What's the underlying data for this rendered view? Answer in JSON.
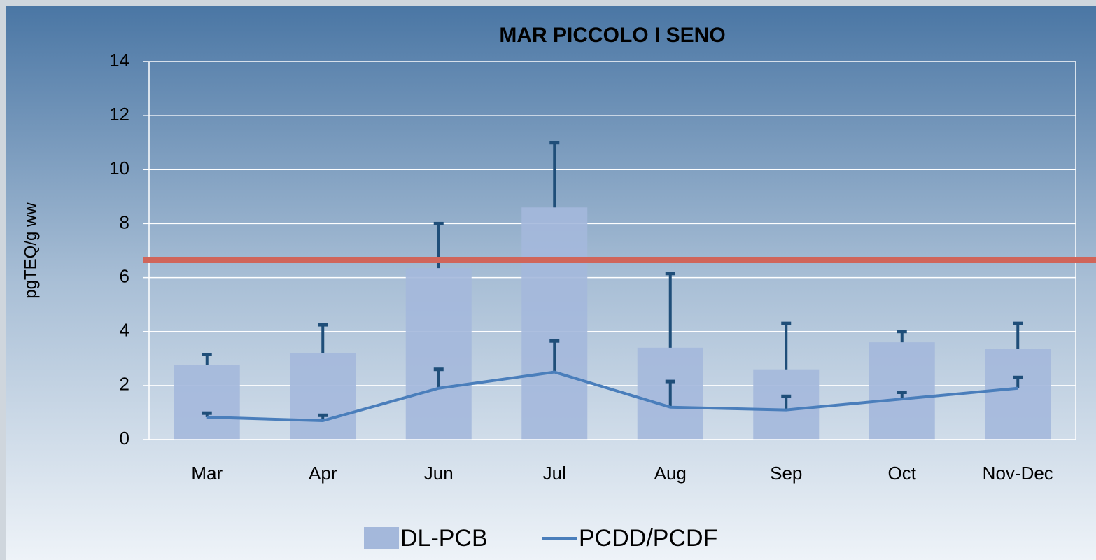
{
  "chart_data": {
    "type": "bar",
    "title": "MAR PICCOLO  I  SENO",
    "y_label": "pgTEQ/g ww",
    "categories": [
      "Mar",
      "Apr",
      "Jun",
      "Jul",
      "Aug",
      "Sep",
      "Oct",
      "Nov-Dec"
    ],
    "series": [
      {
        "name": "DL-PCB",
        "type": "bar",
        "color": "#a4b8db",
        "values": [
          2.75,
          3.2,
          6.35,
          8.6,
          3.4,
          2.6,
          3.6,
          3.35
        ],
        "errors": [
          0.4,
          1.05,
          1.65,
          2.4,
          2.75,
          1.7,
          0.4,
          0.95
        ]
      },
      {
        "name": "PCDD/PCDF",
        "type": "line",
        "color": "#4a7ebb",
        "values": [
          0.83,
          0.7,
          1.9,
          2.5,
          1.2,
          1.1,
          1.5,
          1.9
        ],
        "errors": [
          0.15,
          0.2,
          0.7,
          1.15,
          0.95,
          0.5,
          0.25,
          0.4
        ]
      }
    ],
    "error_color": "#1f4e79",
    "reference_line": {
      "value": 6.65,
      "color": "#d0655a"
    },
    "ylim": [
      0,
      14
    ],
    "yticks": [
      0,
      2,
      4,
      6,
      8,
      10,
      12,
      14
    ],
    "grid": true
  }
}
